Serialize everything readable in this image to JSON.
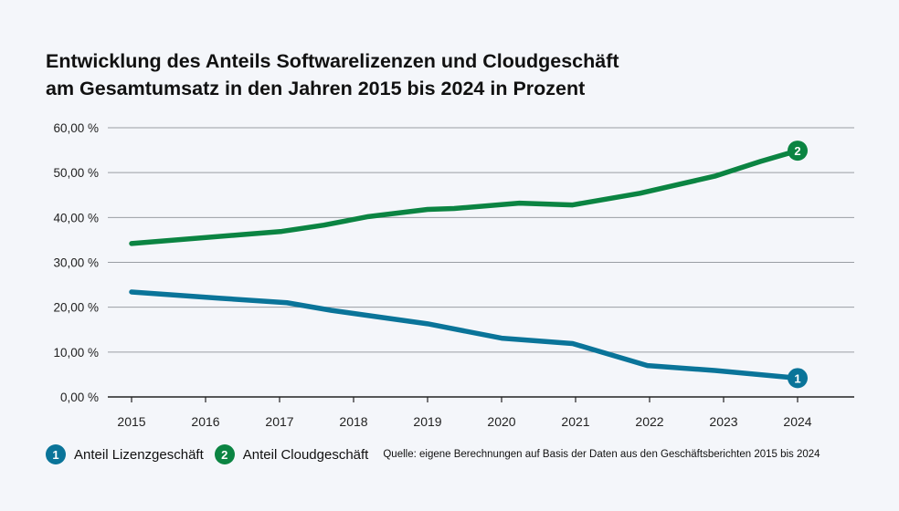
{
  "chart_data": {
    "type": "line",
    "title_line1": "Entwicklung des Anteils Softwarelizenzen und Cloudgeschäft",
    "title_line2": "am Gesamtumsatz in den Jahren 2015 bis 2024 in Prozent",
    "xlabel": "",
    "ylabel": "",
    "ylim": [
      0,
      60
    ],
    "xlim": [
      2015,
      2024
    ],
    "y_ticks": [
      0,
      10,
      20,
      30,
      40,
      50,
      60
    ],
    "y_tick_labels": [
      "0,00 %",
      "10,00 %",
      "20,00 %",
      "30,00 %",
      "40,00 %",
      "50,00 %",
      "60,00 %"
    ],
    "x_tick_labels": [
      "2015",
      "2016",
      "2017",
      "2018",
      "2019",
      "2020",
      "2021",
      "2022",
      "2023",
      "2024"
    ],
    "grid": true,
    "legend_position": "bottom-left",
    "series": [
      {
        "name": "Anteil Lizenzgeschäft",
        "marker": "1",
        "color": "#0a7499",
        "x": [
          2015,
          2016.2,
          2017.1,
          2017.7,
          2019.0,
          2020.0,
          2020.96,
          2021.97,
          2022.88,
          2024
        ],
        "values": [
          23.4,
          22.0,
          21.0,
          19.3,
          16.3,
          13.1,
          11.9,
          7.0,
          5.9,
          4.2
        ]
      },
      {
        "name": "Anteil Cloudgeschäft",
        "marker": "2",
        "color": "#0b8442",
        "x": [
          2015,
          2017.03,
          2017.6,
          2018.2,
          2019.0,
          2019.36,
          2020.24,
          2020.96,
          2021.87,
          2022.88,
          2023.5,
          2024
        ],
        "values": [
          34.2,
          36.9,
          38.3,
          40.2,
          41.8,
          42.0,
          43.2,
          42.8,
          45.4,
          49.2,
          52.5,
          54.9
        ]
      }
    ],
    "source": "Quelle: eigene Berechnungen auf Basis der Daten aus den Geschäftsberichten 2015 bis 2024"
  }
}
